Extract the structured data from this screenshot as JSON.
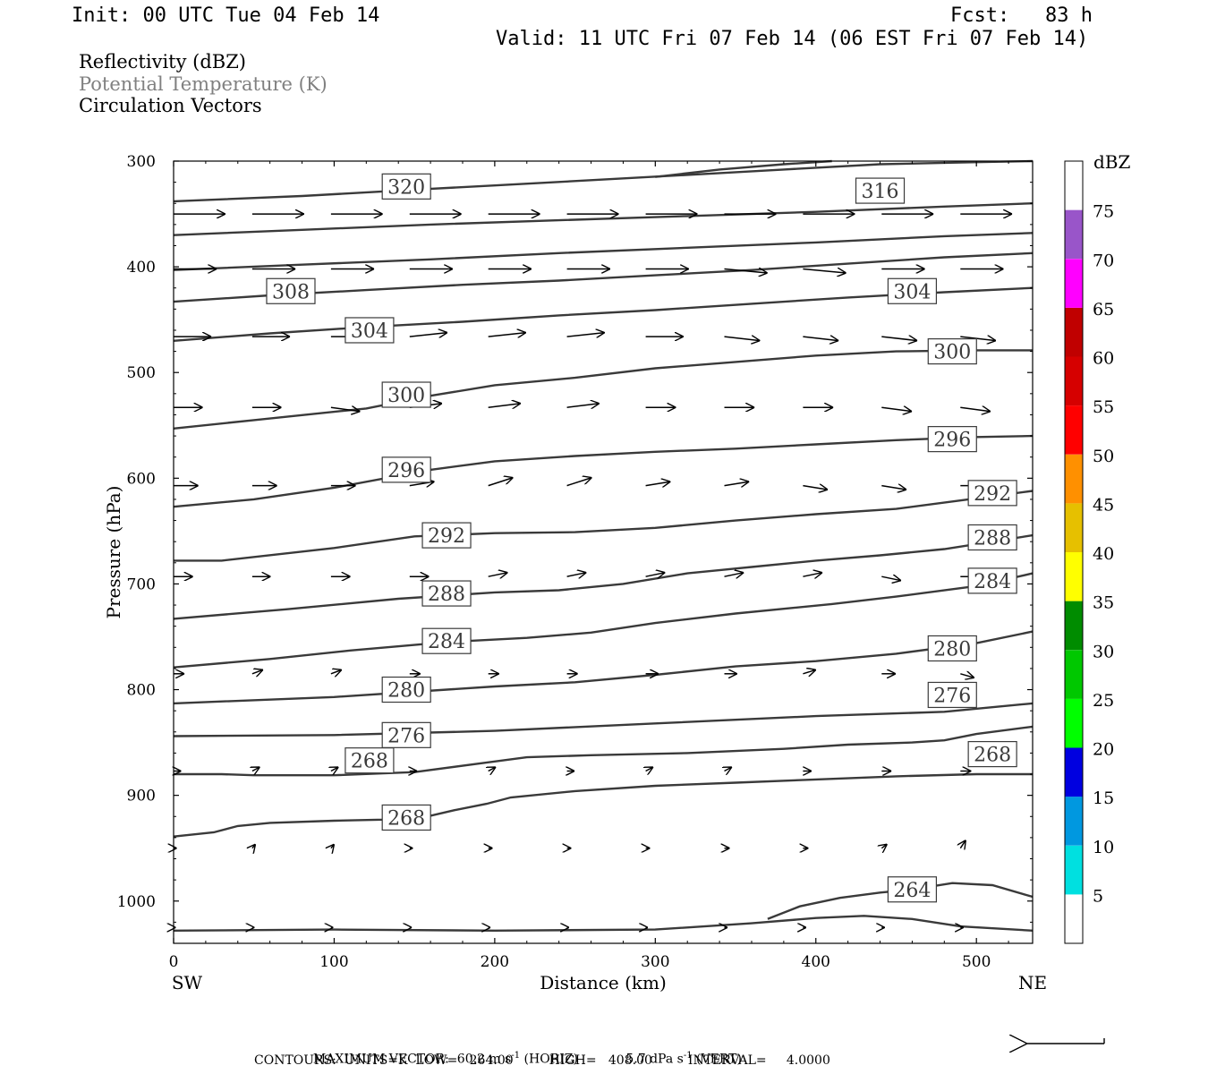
{
  "header": {
    "init": "Init: 00 UTC Tue 04 Feb 14",
    "fcst": "Fcst:   83 h",
    "valid": "Valid: 11 UTC Fri 07 Feb 14 (06 EST Fri 07 Feb 14)"
  },
  "fields": [
    {
      "label": "Reflectivity (dBZ)",
      "color": "#000000"
    },
    {
      "label": "Potential Temperature (K)",
      "color": "#808080"
    },
    {
      "label": "Circulation Vectors",
      "color": "#000000"
    }
  ],
  "footer": {
    "max_vector_label": "MAXIMUM VECTOR:",
    "max_horiz": "60.2 m s",
    "horiz_tag": "(HORIZ)",
    "max_vert": "5.7 dPa s",
    "vert_tag": "(VERT)",
    "sup": "-1",
    "contours": "CONTOURS:  UNITS=K  LOW=   264.00         HIGH=   408.00         INTERVAL=     4.0000"
  },
  "chart_data": {
    "type": "cross-section",
    "xlabel": "Distance (km)",
    "ylabel": "Pressure (hPa)",
    "x_left_label": "SW",
    "x_right_label": "NE",
    "xlim": [
      0,
      535
    ],
    "ylim": [
      1040,
      300
    ],
    "xticks": [
      0,
      100,
      200,
      300,
      400,
      500
    ],
    "yticks": [
      300,
      400,
      500,
      600,
      700,
      800,
      900,
      1000
    ],
    "colorbar": {
      "title": "dBZ",
      "labels": [
        5,
        10,
        15,
        20,
        25,
        30,
        35,
        40,
        45,
        50,
        55,
        60,
        65,
        70,
        75
      ],
      "colors": [
        "#ffffff",
        "#00e0e0",
        "#0098e0",
        "#0000e0",
        "#00ff00",
        "#00c800",
        "#008c00",
        "#ffff00",
        "#e6c000",
        "#ff9000",
        "#ff0000",
        "#d60000",
        "#c00000",
        "#ff00ff",
        "#9955c9",
        "#ffffff"
      ]
    },
    "contours": [
      {
        "level": 264,
        "points": [
          [
            370,
            1017
          ],
          [
            390,
            1005
          ],
          [
            415,
            997
          ],
          [
            440,
            992
          ],
          [
            460,
            989
          ],
          [
            485,
            983
          ],
          [
            510,
            985
          ],
          [
            535,
            996
          ]
        ],
        "labels": [
          [
            460,
            989
          ]
        ]
      },
      {
        "level": 264,
        "points": [
          [
            0,
            1028
          ],
          [
            100,
            1027
          ],
          [
            200,
            1028
          ],
          [
            300,
            1027
          ],
          [
            360,
            1021
          ],
          [
            400,
            1016
          ],
          [
            430,
            1014
          ],
          [
            460,
            1017
          ],
          [
            490,
            1024
          ],
          [
            535,
            1028
          ]
        ],
        "labels": []
      },
      {
        "level": 268,
        "points": [
          [
            0,
            939
          ],
          [
            25,
            935
          ],
          [
            40,
            929
          ],
          [
            60,
            926
          ],
          [
            100,
            924
          ],
          [
            130,
            923
          ],
          [
            155,
            921
          ],
          [
            175,
            914
          ],
          [
            195,
            908
          ],
          [
            210,
            902
          ],
          [
            250,
            896
          ],
          [
            300,
            891
          ],
          [
            350,
            888
          ],
          [
            400,
            885
          ],
          [
            450,
            882
          ],
          [
            500,
            880
          ],
          [
            535,
            880
          ]
        ],
        "labels": [
          [
            145,
            921
          ]
        ]
      },
      {
        "level": 268,
        "points": [
          [
            0,
            880
          ],
          [
            30,
            880
          ],
          [
            50,
            881
          ],
          [
            100,
            881
          ],
          [
            150,
            878
          ],
          [
            190,
            870
          ],
          [
            220,
            864
          ],
          [
            260,
            862
          ],
          [
            320,
            860
          ],
          [
            380,
            856
          ],
          [
            420,
            852
          ],
          [
            460,
            850
          ],
          [
            480,
            848
          ],
          [
            500,
            842
          ],
          [
            535,
            835
          ]
        ],
        "labels": [
          [
            122,
            867
          ],
          [
            510,
            861
          ]
        ]
      },
      {
        "level": 276,
        "points": [
          [
            0,
            844
          ],
          [
            100,
            843
          ],
          [
            200,
            839
          ],
          [
            300,
            832
          ],
          [
            400,
            825
          ],
          [
            480,
            821
          ],
          [
            535,
            813
          ]
        ],
        "labels": [
          [
            145,
            843
          ],
          [
            485,
            805
          ]
        ]
      },
      {
        "level": 280,
        "points": [
          [
            0,
            813
          ],
          [
            100,
            807
          ],
          [
            200,
            797
          ],
          [
            250,
            793
          ],
          [
            300,
            786
          ],
          [
            350,
            778
          ],
          [
            400,
            773
          ],
          [
            450,
            766
          ],
          [
            500,
            756
          ],
          [
            535,
            745
          ]
        ],
        "labels": [
          [
            145,
            800
          ],
          [
            485,
            761
          ]
        ]
      },
      {
        "level": 284,
        "points": [
          [
            0,
            779
          ],
          [
            60,
            771
          ],
          [
            110,
            763
          ],
          [
            170,
            755
          ],
          [
            220,
            751
          ],
          [
            260,
            746
          ],
          [
            300,
            737
          ],
          [
            350,
            728
          ],
          [
            410,
            719
          ],
          [
            450,
            712
          ],
          [
            500,
            702
          ],
          [
            535,
            690
          ]
        ],
        "labels": [
          [
            170,
            754
          ],
          [
            510,
            697
          ]
        ]
      },
      {
        "level": 288,
        "points": [
          [
            0,
            733
          ],
          [
            70,
            724
          ],
          [
            140,
            714
          ],
          [
            200,
            708
          ],
          [
            240,
            706
          ],
          [
            280,
            700
          ],
          [
            320,
            690
          ],
          [
            360,
            684
          ],
          [
            400,
            678
          ],
          [
            440,
            673
          ],
          [
            480,
            667
          ],
          [
            535,
            654
          ]
        ],
        "labels": [
          [
            170,
            709
          ],
          [
            510,
            656
          ]
        ]
      },
      {
        "level": 292,
        "points": [
          [
            0,
            678
          ],
          [
            30,
            678
          ],
          [
            100,
            666
          ],
          [
            150,
            655
          ],
          [
            200,
            652
          ],
          [
            250,
            651
          ],
          [
            300,
            647
          ],
          [
            350,
            640
          ],
          [
            400,
            634
          ],
          [
            450,
            629
          ],
          [
            500,
            619
          ],
          [
            535,
            612
          ]
        ],
        "labels": [
          [
            170,
            654
          ],
          [
            510,
            614
          ]
        ]
      },
      {
        "level": 296,
        "points": [
          [
            0,
            627
          ],
          [
            50,
            620
          ],
          [
            100,
            609
          ],
          [
            160,
            592
          ],
          [
            200,
            584
          ],
          [
            250,
            579
          ],
          [
            300,
            575
          ],
          [
            350,
            572
          ],
          [
            400,
            568
          ],
          [
            450,
            564
          ],
          [
            500,
            561
          ],
          [
            535,
            560
          ]
        ],
        "labels": [
          [
            145,
            592
          ],
          [
            485,
            563
          ]
        ]
      },
      {
        "level": 300,
        "points": [
          [
            0,
            553
          ],
          [
            50,
            545
          ],
          [
            120,
            534
          ],
          [
            160,
            522
          ],
          [
            200,
            512
          ],
          [
            250,
            505
          ],
          [
            300,
            496
          ],
          [
            350,
            490
          ],
          [
            400,
            484
          ],
          [
            450,
            480
          ],
          [
            500,
            479
          ],
          [
            535,
            479
          ]
        ],
        "labels": [
          [
            145,
            521
          ],
          [
            485,
            480
          ]
        ]
      },
      {
        "level": 304,
        "points": [
          [
            0,
            470
          ],
          [
            60,
            463
          ],
          [
            120,
            457
          ],
          [
            180,
            452
          ],
          [
            240,
            446
          ],
          [
            300,
            441
          ],
          [
            360,
            435
          ],
          [
            420,
            429
          ],
          [
            480,
            424
          ],
          [
            535,
            420
          ]
        ],
        "labels": [
          [
            122,
            460
          ],
          [
            460,
            423
          ]
        ]
      },
      {
        "level": 308,
        "points": [
          [
            0,
            433
          ],
          [
            60,
            427
          ],
          [
            120,
            422
          ],
          [
            180,
            417
          ],
          [
            240,
            413
          ],
          [
            300,
            408
          ],
          [
            360,
            403
          ],
          [
            420,
            397
          ],
          [
            480,
            391
          ],
          [
            535,
            387
          ]
        ],
        "labels": [
          [
            73,
            423
          ]
        ]
      },
      {
        "level": 312,
        "points": [
          [
            0,
            403
          ],
          [
            80,
            398
          ],
          [
            160,
            393
          ],
          [
            240,
            387
          ],
          [
            320,
            382
          ],
          [
            400,
            377
          ],
          [
            480,
            371
          ],
          [
            535,
            368
          ]
        ],
        "labels": []
      },
      {
        "level": 316,
        "points": [
          [
            0,
            370
          ],
          [
            80,
            365
          ],
          [
            160,
            360
          ],
          [
            240,
            356
          ],
          [
            320,
            352
          ],
          [
            400,
            348
          ],
          [
            480,
            343
          ],
          [
            535,
            340
          ]
        ],
        "labels": [
          [
            440,
            328
          ]
        ]
      },
      {
        "level": 320,
        "points": [
          [
            0,
            338
          ],
          [
            80,
            333
          ],
          [
            150,
            327
          ],
          [
            200,
            323
          ],
          [
            260,
            318
          ],
          [
            320,
            313
          ],
          [
            380,
            308
          ],
          [
            440,
            303
          ],
          [
            500,
            301
          ],
          [
            535,
            300
          ]
        ],
        "labels": [
          [
            145,
            324
          ]
        ]
      },
      {
        "level": 320,
        "points": [
          [
            300,
            315
          ],
          [
            340,
            308
          ],
          [
            380,
            303
          ],
          [
            410,
            300
          ]
        ],
        "labels": []
      }
    ],
    "vectors": {
      "x": [
        0,
        49,
        98,
        147,
        196,
        245,
        294,
        343,
        392,
        441,
        490
      ],
      "rows": [
        {
          "p": 350,
          "u": [
            48,
            48,
            48,
            48,
            48,
            48,
            48,
            48,
            48,
            48,
            48
          ],
          "w": [
            0,
            0,
            0,
            0,
            0,
            0,
            0,
            0,
            0,
            0,
            0
          ]
        },
        {
          "p": 402,
          "u": [
            40,
            40,
            40,
            40,
            40,
            40,
            40,
            40,
            40,
            40,
            40
          ],
          "w": [
            0,
            0,
            0,
            0,
            0,
            0,
            0,
            1,
            1,
            0,
            0
          ]
        },
        {
          "p": 466,
          "u": [
            35,
            35,
            35,
            35,
            35,
            35,
            35,
            33,
            33,
            33,
            33
          ],
          "w": [
            0,
            0,
            0,
            -1,
            -1,
            -1,
            0,
            1,
            1,
            1,
            1
          ]
        },
        {
          "p": 533,
          "u": [
            27,
            27,
            27,
            30,
            30,
            30,
            28,
            28,
            28,
            28,
            28
          ],
          "w": [
            0,
            0,
            1,
            -1,
            -1,
            -1,
            0,
            0,
            0,
            1,
            1
          ]
        },
        {
          "p": 607,
          "u": [
            23,
            23,
            23,
            23,
            23,
            23,
            23,
            23,
            23,
            23,
            23
          ],
          "w": [
            0,
            0,
            0,
            -1,
            -2,
            -2,
            -1,
            -1,
            1,
            1,
            0
          ]
        },
        {
          "p": 693,
          "u": [
            18,
            17,
            18,
            18,
            18,
            18,
            18,
            18,
            18,
            18,
            18
          ],
          "w": [
            0,
            0,
            0,
            0,
            -1,
            -1,
            -1,
            -1,
            -1,
            1,
            0
          ]
        },
        {
          "p": 785,
          "u": [
            10,
            10,
            10,
            10,
            10,
            10,
            12,
            12,
            12,
            13,
            13
          ],
          "w": [
            0,
            -1,
            -1,
            0,
            0,
            0,
            0,
            0,
            -1,
            0,
            1
          ]
        },
        {
          "p": 877,
          "u": [
            7,
            7,
            7,
            7,
            7,
            7,
            7,
            7,
            8,
            9,
            10
          ],
          "w": [
            0,
            -1,
            -1,
            0,
            -1,
            0,
            -1,
            -1,
            0,
            0,
            0
          ]
        },
        {
          "p": 950,
          "u": [
            3,
            3,
            3,
            3,
            4,
            4,
            4,
            5,
            5,
            5,
            5
          ],
          "w": [
            0,
            -1,
            -1,
            0,
            0,
            0,
            0,
            0,
            0,
            -1,
            -2
          ]
        },
        {
          "p": 1025,
          "u": [
            2,
            2,
            2,
            2,
            2,
            2,
            2,
            3,
            3,
            3,
            3
          ],
          "w": [
            0,
            0,
            0,
            0,
            0,
            0,
            0,
            0,
            0,
            0,
            0
          ]
        }
      ]
    }
  }
}
